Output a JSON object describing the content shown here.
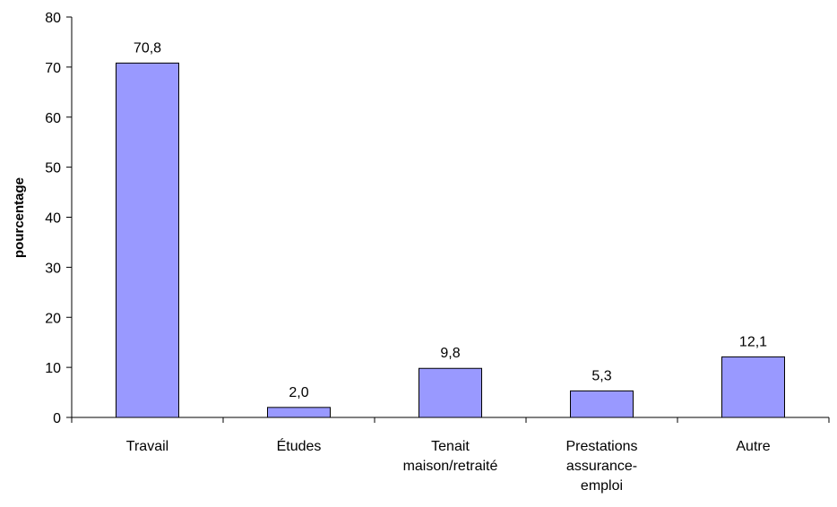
{
  "chart_data": {
    "type": "bar",
    "title": "",
    "xlabel": "",
    "ylabel": "pourcentage",
    "ylim": [
      0,
      80
    ],
    "yticks": [
      0,
      10,
      20,
      30,
      40,
      50,
      60,
      70,
      80
    ],
    "grid": false,
    "categories": [
      [
        "Travail"
      ],
      [
        "Études"
      ],
      [
        "Tenait",
        "maison/retraité"
      ],
      [
        "Prestations",
        "assurance-",
        "emploi"
      ],
      [
        "Autre"
      ]
    ],
    "values": [
      70.8,
      2.0,
      9.8,
      5.3,
      12.1
    ],
    "data_labels": [
      "70,8",
      "2,0",
      "9,8",
      "5,3",
      "12,1"
    ],
    "colors": {
      "bar_fill": "#9999ff",
      "bar_stroke": "#000000",
      "axis": "#000000"
    }
  }
}
